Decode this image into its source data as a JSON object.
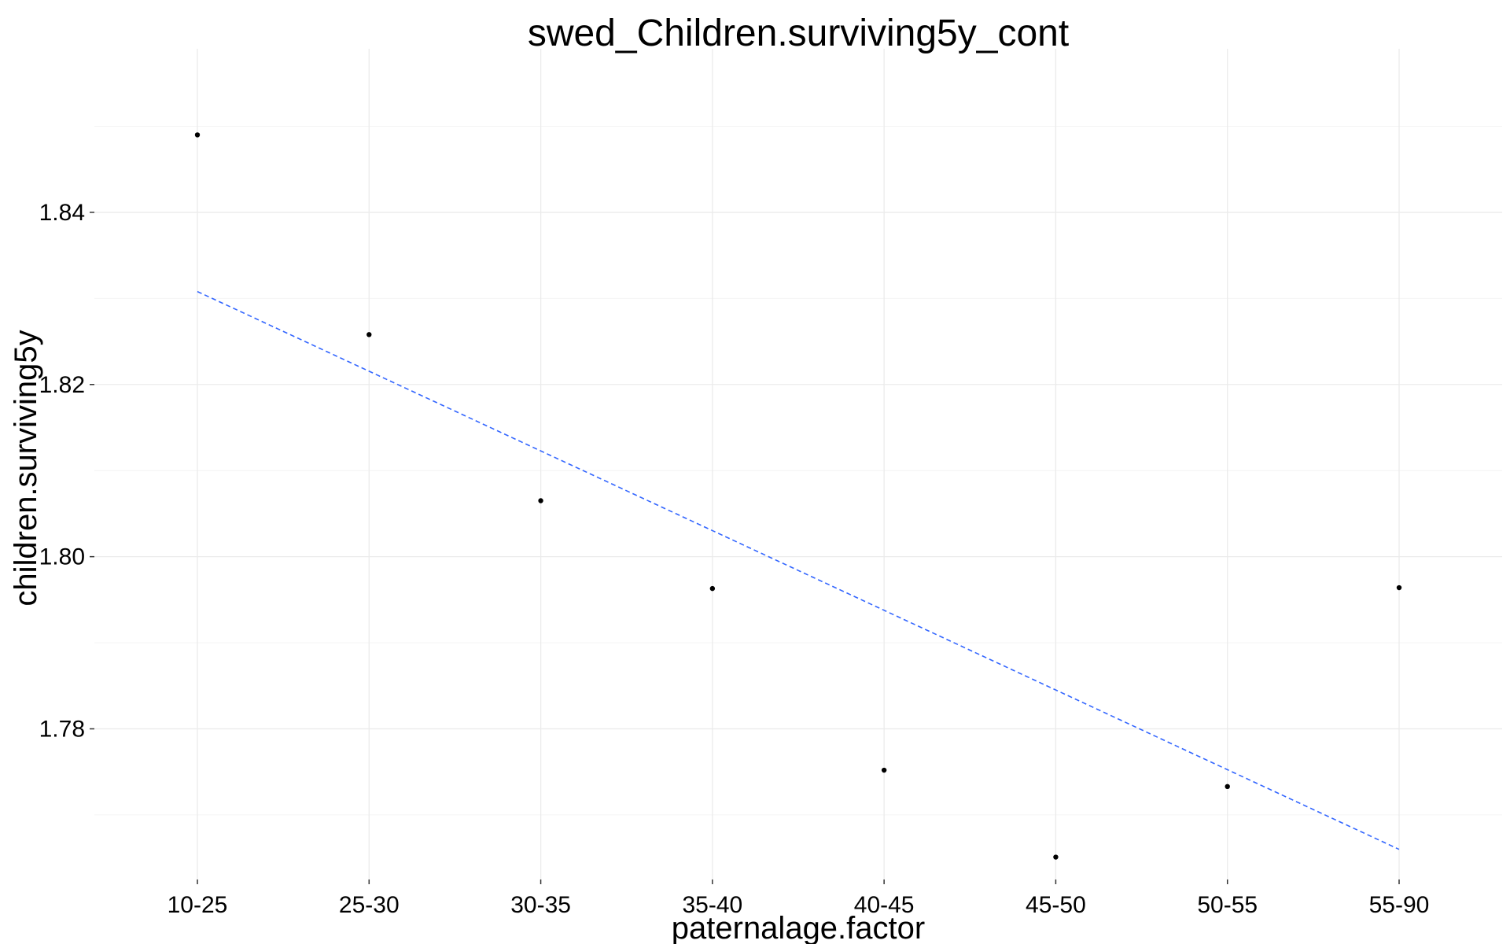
{
  "chart_data": {
    "type": "scatter",
    "title": "swed_Children.surviving5y_cont",
    "xlabel": "paternalage.factor",
    "ylabel": "children.surviving5y",
    "categories": [
      "10-25",
      "25-30",
      "30-35",
      "35-40",
      "40-45",
      "45-50",
      "50-55",
      "55-90"
    ],
    "values": [
      1.849,
      1.8258,
      1.8065,
      1.7963,
      1.7752,
      1.7651,
      1.7733,
      1.7964
    ],
    "ylim": [
      1.7625,
      1.859
    ],
    "yticks": [
      1.78,
      1.8,
      1.82,
      1.84
    ],
    "ytick_labels": [
      "1.78",
      "1.80",
      "1.82",
      "1.84"
    ],
    "trend_line": {
      "type": "linear",
      "style": "dashed",
      "start": {
        "x": "10-25",
        "y": 1.8308
      },
      "end": {
        "x": "55-90",
        "y": 1.766
      }
    },
    "grid": true,
    "legend": "none",
    "colors": {
      "points": "#000000",
      "trend_line": "#3366ff",
      "grid": "#ebebeb"
    }
  }
}
